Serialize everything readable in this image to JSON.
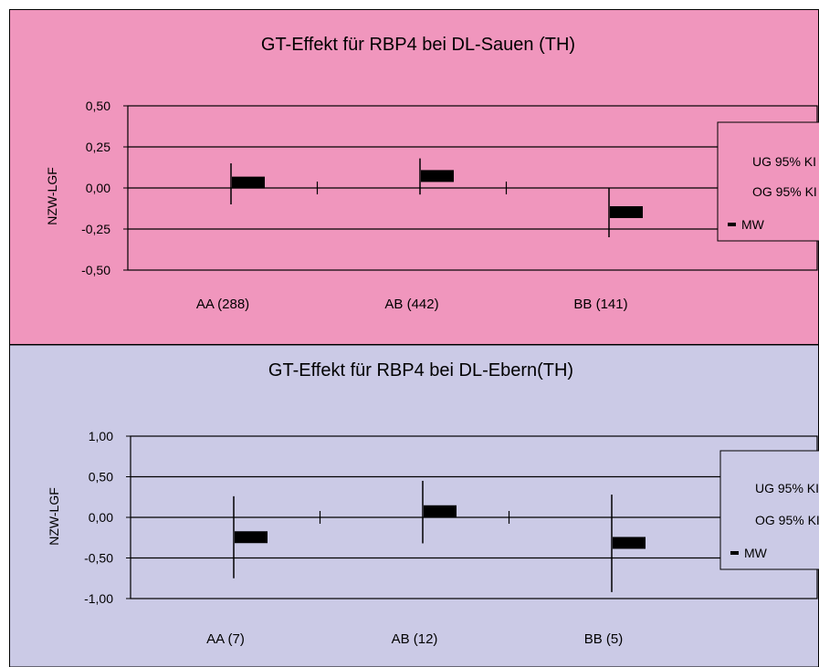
{
  "chart_data": [
    {
      "type": "error-bar",
      "title": "GT-Effekt für RBP4 bei DL-Sauen (TH)",
      "ylabel": "NZW-LGF",
      "ylim": [
        -0.5,
        0.5
      ],
      "yticks": [
        0.5,
        0.25,
        0.0,
        -0.25,
        -0.5
      ],
      "ytick_labels": [
        "0,50",
        "0,25",
        "0,00",
        "-0,25",
        "-0,50"
      ],
      "grid": true,
      "categories": [
        "AA (288)",
        "AB (442)",
        "BB (141)"
      ],
      "series": [
        {
          "name": "UG 95% KI",
          "values": [
            -0.1,
            -0.04,
            -0.3
          ]
        },
        {
          "name": "OG 95% KI",
          "values": [
            0.15,
            0.18,
            0.0
          ]
        },
        {
          "name": "MW",
          "values": [
            0.03,
            0.07,
            -0.15
          ]
        }
      ],
      "legend": {
        "placement": "right",
        "entries": [
          "UG 95% KI",
          "OG 95% KI",
          "MW"
        ]
      },
      "colors": {
        "background": "#f096bd",
        "plot": "#f096bd",
        "mark": "#000000"
      }
    },
    {
      "type": "error-bar",
      "title": "GT-Effekt für RBP4 bei DL-Ebern(TH)",
      "ylabel": "NZW-LGF",
      "ylim": [
        -1.0,
        1.0
      ],
      "yticks": [
        1.0,
        0.5,
        0.0,
        -0.5,
        -1.0
      ],
      "ytick_labels": [
        "1,00",
        "0,50",
        "0,00",
        "-0,50",
        "-1,00"
      ],
      "grid": true,
      "categories": [
        "AA (7)",
        "AB (12)",
        "BB (5)"
      ],
      "series": [
        {
          "name": "UG 95% KI",
          "values": [
            -0.75,
            -0.32,
            -0.92
          ]
        },
        {
          "name": "OG 95% KI",
          "values": [
            0.26,
            0.45,
            0.28
          ]
        },
        {
          "name": "MW",
          "values": [
            -0.25,
            0.07,
            -0.32
          ]
        }
      ],
      "legend": {
        "placement": "right",
        "entries": [
          "UG 95% KI",
          "OG 95% KI",
          "MW"
        ]
      },
      "colors": {
        "background": "#cbcae6",
        "plot": "#cbcae6",
        "mark": "#000000"
      }
    }
  ]
}
